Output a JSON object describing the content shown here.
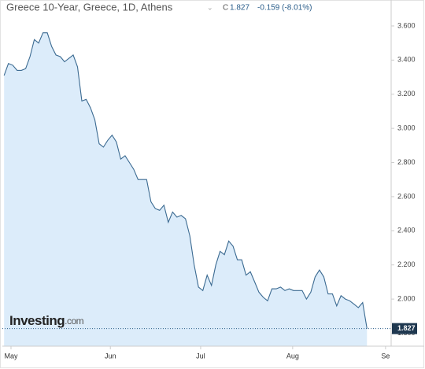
{
  "chart_data": {
    "type": "area",
    "title": "Greece 10-Year, Greece, 1D, Athens",
    "close_label": "C",
    "close": 1.827,
    "change": "-0.159 (-8.01%)",
    "brand": "Investing",
    "brand_suffix": ".com",
    "color": "#3b6a91",
    "fill": "#dcecfa",
    "values": [
      3.31,
      3.38,
      3.37,
      3.34,
      3.34,
      3.35,
      3.42,
      3.52,
      3.5,
      3.56,
      3.56,
      3.48,
      3.43,
      3.42,
      3.39,
      3.41,
      3.43,
      3.36,
      3.16,
      3.17,
      3.12,
      3.05,
      2.91,
      2.89,
      2.93,
      2.96,
      2.92,
      2.82,
      2.84,
      2.8,
      2.76,
      2.7,
      2.7,
      2.7,
      2.57,
      2.53,
      2.52,
      2.55,
      2.45,
      2.51,
      2.48,
      2.49,
      2.47,
      2.37,
      2.2,
      2.07,
      2.05,
      2.14,
      2.08,
      2.2,
      2.28,
      2.26,
      2.34,
      2.31,
      2.23,
      2.23,
      2.14,
      2.16,
      2.1,
      2.04,
      2.01,
      1.99,
      2.06,
      2.06,
      2.07,
      2.05,
      2.06,
      2.05,
      2.05,
      2.05,
      2.0,
      2.04,
      2.13,
      2.17,
      2.13,
      2.03,
      2.03,
      1.96,
      2.02,
      2.0,
      1.99,
      1.97,
      1.95,
      1.98,
      1.827
    ],
    "xlim": [
      -0.4,
      89.6
    ],
    "xticks": [
      {
        "value": 1.6,
        "label": "May"
      },
      {
        "value": 24.6,
        "label": "Jun"
      },
      {
        "value": 45.5,
        "label": "Jul"
      },
      {
        "value": 66.8,
        "label": "Aug"
      },
      {
        "value": 88.3,
        "label": "Se"
      }
    ],
    "ylim": [
      1.724,
      3.752
    ],
    "yticks": [
      {
        "value": 1.8,
        "label": "1.800"
      },
      {
        "value": 2.0,
        "label": "2.000"
      },
      {
        "value": 2.2,
        "label": "2.200"
      },
      {
        "value": 2.4,
        "label": "2.400"
      },
      {
        "value": 2.6,
        "label": "2.600"
      },
      {
        "value": 2.8,
        "label": "2.800"
      },
      {
        "value": 3.0,
        "label": "3.000"
      },
      {
        "value": 3.2,
        "label": "3.200"
      },
      {
        "value": 3.4,
        "label": "3.400"
      },
      {
        "value": 3.6,
        "label": "3.600"
      }
    ]
  }
}
